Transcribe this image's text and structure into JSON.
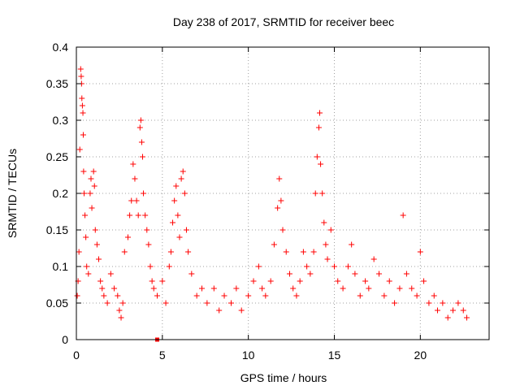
{
  "chart_data": {
    "type": "scatter",
    "title": "Day 238 of 2017, SRMTID for receiver beec",
    "xlabel": "GPS time / hours",
    "ylabel": "SRMTID / TECUs",
    "xlim": [
      0,
      24
    ],
    "ylim": [
      0,
      0.4
    ],
    "x_ticks": [
      0,
      5,
      10,
      15,
      20
    ],
    "x_tick_labels": [
      "0",
      "5",
      "10",
      "15",
      "20"
    ],
    "y_ticks": [
      0,
      0.05,
      0.1,
      0.15,
      0.2,
      0.25,
      0.3,
      0.35,
      0.4
    ],
    "y_tick_labels": [
      "0",
      "0.05",
      "0.1",
      "0.15",
      "0.2",
      "0.25",
      "0.3",
      "0.35",
      "0.4"
    ],
    "grid": true,
    "marker": "plus",
    "colors": {
      "points": "#ff0000",
      "grid": "#a0a0a0",
      "axes": "#000000"
    },
    "series": [
      {
        "name": "SRMTID",
        "points": [
          [
            0.05,
            0.06
          ],
          [
            0.1,
            0.08
          ],
          [
            0.15,
            0.12
          ],
          [
            0.2,
            0.26
          ],
          [
            0.25,
            0.37
          ],
          [
            0.28,
            0.36
          ],
          [
            0.3,
            0.35
          ],
          [
            0.32,
            0.33
          ],
          [
            0.35,
            0.32
          ],
          [
            0.38,
            0.31
          ],
          [
            0.4,
            0.28
          ],
          [
            0.42,
            0.23
          ],
          [
            0.45,
            0.2
          ],
          [
            0.5,
            0.17
          ],
          [
            0.55,
            0.14
          ],
          [
            0.6,
            0.1
          ],
          [
            0.7,
            0.09
          ],
          [
            0.8,
            0.2
          ],
          [
            0.85,
            0.22
          ],
          [
            0.9,
            0.18
          ],
          [
            1.0,
            0.23
          ],
          [
            1.05,
            0.21
          ],
          [
            1.1,
            0.15
          ],
          [
            1.2,
            0.13
          ],
          [
            1.3,
            0.11
          ],
          [
            1.4,
            0.08
          ],
          [
            1.5,
            0.07
          ],
          [
            1.6,
            0.06
          ],
          [
            1.8,
            0.05
          ],
          [
            2.0,
            0.09
          ],
          [
            2.2,
            0.07
          ],
          [
            2.4,
            0.06
          ],
          [
            2.5,
            0.04
          ],
          [
            2.6,
            0.03
          ],
          [
            2.7,
            0.05
          ],
          [
            2.8,
            0.12
          ],
          [
            3.0,
            0.14
          ],
          [
            3.1,
            0.17
          ],
          [
            3.2,
            0.19
          ],
          [
            3.3,
            0.24
          ],
          [
            3.4,
            0.22
          ],
          [
            3.5,
            0.19
          ],
          [
            3.6,
            0.17
          ],
          [
            3.7,
            0.29
          ],
          [
            3.75,
            0.3
          ],
          [
            3.8,
            0.27
          ],
          [
            3.85,
            0.25
          ],
          [
            3.9,
            0.2
          ],
          [
            4.0,
            0.17
          ],
          [
            4.1,
            0.15
          ],
          [
            4.2,
            0.13
          ],
          [
            4.3,
            0.1
          ],
          [
            4.4,
            0.08
          ],
          [
            4.5,
            0.07
          ],
          [
            4.7,
            0.06
          ],
          [
            5.0,
            0.08
          ],
          [
            5.2,
            0.05
          ],
          [
            5.4,
            0.1
          ],
          [
            5.5,
            0.12
          ],
          [
            5.6,
            0.16
          ],
          [
            5.7,
            0.19
          ],
          [
            5.8,
            0.21
          ],
          [
            5.9,
            0.17
          ],
          [
            6.0,
            0.14
          ],
          [
            6.1,
            0.22
          ],
          [
            6.2,
            0.23
          ],
          [
            6.3,
            0.2
          ],
          [
            6.4,
            0.15
          ],
          [
            6.5,
            0.12
          ],
          [
            6.7,
            0.09
          ],
          [
            7.0,
            0.06
          ],
          [
            7.3,
            0.07
          ],
          [
            7.6,
            0.05
          ],
          [
            8.0,
            0.07
          ],
          [
            8.3,
            0.04
          ],
          [
            8.6,
            0.06
          ],
          [
            9.0,
            0.05
          ],
          [
            9.3,
            0.07
          ],
          [
            9.6,
            0.04
          ],
          [
            10.0,
            0.06
          ],
          [
            10.3,
            0.08
          ],
          [
            10.6,
            0.1
          ],
          [
            10.8,
            0.07
          ],
          [
            11.0,
            0.06
          ],
          [
            11.3,
            0.08
          ],
          [
            11.5,
            0.13
          ],
          [
            11.7,
            0.18
          ],
          [
            11.8,
            0.22
          ],
          [
            11.9,
            0.19
          ],
          [
            12.0,
            0.15
          ],
          [
            12.2,
            0.12
          ],
          [
            12.4,
            0.09
          ],
          [
            12.6,
            0.07
          ],
          [
            12.8,
            0.06
          ],
          [
            13.0,
            0.08
          ],
          [
            13.2,
            0.12
          ],
          [
            13.4,
            0.1
          ],
          [
            13.6,
            0.09
          ],
          [
            13.8,
            0.12
          ],
          [
            13.9,
            0.2
          ],
          [
            14.0,
            0.25
          ],
          [
            14.1,
            0.29
          ],
          [
            14.15,
            0.31
          ],
          [
            14.2,
            0.24
          ],
          [
            14.3,
            0.2
          ],
          [
            14.4,
            0.16
          ],
          [
            14.5,
            0.13
          ],
          [
            14.6,
            0.11
          ],
          [
            14.8,
            0.15
          ],
          [
            15.0,
            0.1
          ],
          [
            15.2,
            0.08
          ],
          [
            15.5,
            0.07
          ],
          [
            15.8,
            0.1
          ],
          [
            16.0,
            0.13
          ],
          [
            16.2,
            0.09
          ],
          [
            16.5,
            0.06
          ],
          [
            16.8,
            0.08
          ],
          [
            17.0,
            0.07
          ],
          [
            17.3,
            0.11
          ],
          [
            17.6,
            0.09
          ],
          [
            17.9,
            0.06
          ],
          [
            18.2,
            0.08
          ],
          [
            18.5,
            0.05
          ],
          [
            18.8,
            0.07
          ],
          [
            19.0,
            0.17
          ],
          [
            19.2,
            0.09
          ],
          [
            19.5,
            0.07
          ],
          [
            19.8,
            0.06
          ],
          [
            20.0,
            0.12
          ],
          [
            20.2,
            0.08
          ],
          [
            20.5,
            0.05
          ],
          [
            20.8,
            0.06
          ],
          [
            21.0,
            0.04
          ],
          [
            21.3,
            0.05
          ],
          [
            21.6,
            0.03
          ],
          [
            21.9,
            0.04
          ],
          [
            22.2,
            0.05
          ],
          [
            22.5,
            0.04
          ],
          [
            22.7,
            0.03
          ]
        ]
      }
    ],
    "extra_marker": {
      "x": 4.7,
      "y": 0.0,
      "shape": "square"
    }
  }
}
